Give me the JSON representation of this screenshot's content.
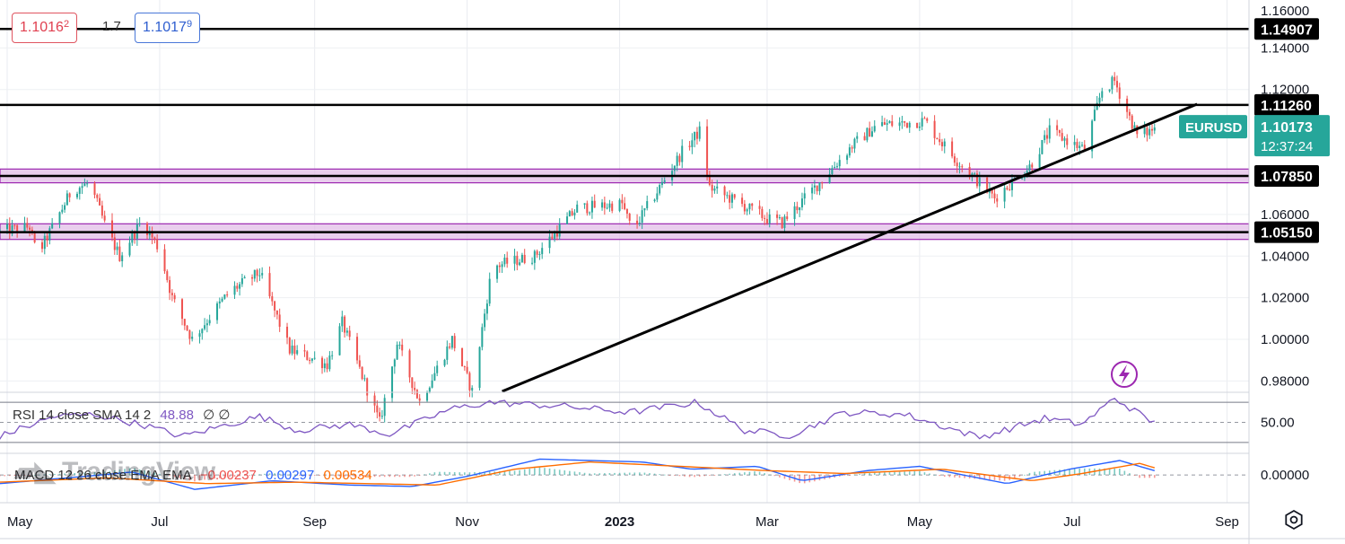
{
  "header": {
    "bid": "1.1016",
    "bid_sup": "2",
    "spread": "1.7",
    "ask": "1.1017",
    "ask_sup": "9"
  },
  "colors": {
    "up": "#26a69a",
    "down": "#ef5350",
    "zone": "#e1bee7",
    "zone_border": "#9c27b0",
    "rsi": "#7e57c2",
    "macd": "#2962ff",
    "signal": "#ff6d00",
    "tag_eur": "#26a69a"
  },
  "chart_data": [
    {
      "type": "candlestick",
      "symbol": "EURUSD",
      "x_labels": [
        "May",
        "Jul",
        "Sep",
        "Nov",
        "2023",
        "Mar",
        "May",
        "Jul",
        "Sep"
      ],
      "x_label_dates": [
        "2022-05",
        "2022-07",
        "2022-09",
        "2022-11",
        "2023-01",
        "2023-03",
        "2023-05",
        "2023-07",
        "2023-09"
      ],
      "y_ticks": [
        "1.14000",
        "1.12000",
        "1.06000",
        "1.04000",
        "1.02000",
        "1.00000",
        "0.98000"
      ],
      "ylim": [
        0.975,
        1.163
      ],
      "close_path": [
        [
          "2022-04-28",
          1.052
        ],
        [
          "2022-05-10",
          1.054
        ],
        [
          "2022-05-13",
          1.04
        ],
        [
          "2022-05-27",
          1.072
        ],
        [
          "2022-06-03",
          1.075
        ],
        [
          "2022-06-10",
          1.052
        ],
        [
          "2022-06-15",
          1.04
        ],
        [
          "2022-06-24",
          1.057
        ],
        [
          "2022-07-01",
          1.043
        ],
        [
          "2022-07-06",
          1.02
        ],
        [
          "2022-07-14",
          1.0
        ],
        [
          "2022-07-29",
          1.023
        ],
        [
          "2022-08-10",
          1.032
        ],
        [
          "2022-08-22",
          0.995
        ],
        [
          "2022-09-06",
          0.988
        ],
        [
          "2022-09-12",
          1.008
        ],
        [
          "2022-09-27",
          0.96
        ],
        [
          "2022-10-04",
          0.998
        ],
        [
          "2022-10-13",
          0.97
        ],
        [
          "2022-10-26",
          1.0
        ],
        [
          "2022-11-03",
          0.975
        ],
        [
          "2022-11-11",
          1.035
        ],
        [
          "2022-11-28",
          1.04
        ],
        [
          "2022-12-15",
          1.063
        ],
        [
          "2023-01-02",
          1.065
        ],
        [
          "2023-01-06",
          1.052
        ],
        [
          "2023-01-26",
          1.09
        ],
        [
          "2023-02-02",
          1.1
        ],
        [
          "2023-02-06",
          1.073
        ],
        [
          "2023-02-23",
          1.062
        ],
        [
          "2023-03-01",
          1.058
        ],
        [
          "2023-03-07",
          1.056
        ],
        [
          "2023-03-24",
          1.078
        ],
        [
          "2023-04-04",
          1.093
        ],
        [
          "2023-04-14",
          1.103
        ],
        [
          "2023-04-26",
          1.104
        ],
        [
          "2023-05-03",
          1.105
        ],
        [
          "2023-05-15",
          1.087
        ],
        [
          "2023-05-31",
          1.068
        ],
        [
          "2023-06-14",
          1.083
        ],
        [
          "2023-06-22",
          1.1
        ],
        [
          "2023-07-06",
          1.091
        ],
        [
          "2023-07-13",
          1.12
        ],
        [
          "2023-07-18",
          1.124
        ],
        [
          "2023-07-27",
          1.098
        ],
        [
          "2023-08-01",
          1.1
        ],
        [
          "2023-08-03",
          1.1017
        ]
      ],
      "horizontal_levels": [
        {
          "label": "1.14907",
          "value": 1.14907
        },
        {
          "label": "1.11260",
          "value": 1.1126
        },
        {
          "label": "1.07850",
          "value": 1.0785,
          "zone": [
            1.0752,
            1.0818
          ]
        },
        {
          "label": "1.05150",
          "value": 1.0515,
          "zone": [
            1.048,
            1.0555
          ]
        }
      ],
      "trendline": [
        [
          "2022-11-15",
          0.975
        ],
        [
          "2023-08-20",
          1.113
        ]
      ],
      "last_price_tag": {
        "symbol": "EURUSD",
        "price": "1.10173",
        "countdown": "12:37:24",
        "value": 1.10173
      },
      "top_partial_tick": "1.16000"
    },
    {
      "type": "line",
      "name": "RSI",
      "label": "RSI 14 close SMA 14 2",
      "value": "48.88",
      "extra": "∅ ∅",
      "y_ticks": [
        "50.00"
      ],
      "bands": [
        70,
        30
      ],
      "ylim": [
        20,
        80
      ],
      "path": [
        [
          "2022-04-28",
          36
        ],
        [
          "2022-05-20",
          56
        ],
        [
          "2022-06-05",
          58
        ],
        [
          "2022-06-25",
          47
        ],
        [
          "2022-07-10",
          36
        ],
        [
          "2022-08-10",
          56
        ],
        [
          "2022-08-25",
          42
        ],
        [
          "2022-09-15",
          48
        ],
        [
          "2022-10-01",
          38
        ],
        [
          "2022-10-25",
          63
        ],
        [
          "2022-11-10",
          70
        ],
        [
          "2022-12-10",
          66
        ],
        [
          "2023-01-05",
          60
        ],
        [
          "2023-02-01",
          70
        ],
        [
          "2023-02-20",
          42
        ],
        [
          "2023-03-10",
          37
        ],
        [
          "2023-04-01",
          60
        ],
        [
          "2023-04-25",
          58
        ],
        [
          "2023-05-25",
          35
        ],
        [
          "2023-06-20",
          54
        ],
        [
          "2023-07-05",
          48
        ],
        [
          "2023-07-18",
          74
        ],
        [
          "2023-08-03",
          49
        ]
      ]
    },
    {
      "type": "line",
      "name": "MACD",
      "label": "MACD 12 26 close EMA EMA",
      "values": [
        "−0.00237",
        "0.00297",
        "0.00534"
      ],
      "y_ticks": [
        "0.00000"
      ],
      "ylim": [
        -0.018,
        0.015
      ],
      "macd_path": [
        [
          "2022-04-28",
          -0.006
        ],
        [
          "2022-06-01",
          -0.001
        ],
        [
          "2022-06-20",
          0.002
        ],
        [
          "2022-07-15",
          -0.01
        ],
        [
          "2022-08-15",
          -0.004
        ],
        [
          "2022-09-15",
          -0.007
        ],
        [
          "2022-10-10",
          -0.008
        ],
        [
          "2022-11-01",
          -0.001
        ],
        [
          "2022-11-30",
          0.011
        ],
        [
          "2023-01-10",
          0.009
        ],
        [
          "2023-01-30",
          0.004
        ],
        [
          "2023-02-25",
          0.006
        ],
        [
          "2023-03-15",
          -0.004
        ],
        [
          "2023-04-10",
          0.003
        ],
        [
          "2023-05-01",
          0.006
        ],
        [
          "2023-06-05",
          -0.006
        ],
        [
          "2023-06-30",
          0.004
        ],
        [
          "2023-07-20",
          0.01
        ],
        [
          "2023-08-03",
          0.003
        ]
      ],
      "signal_path": [
        [
          "2022-04-28",
          -0.005
        ],
        [
          "2022-06-10",
          -0.002
        ],
        [
          "2022-07-20",
          -0.006
        ],
        [
          "2022-08-25",
          -0.005
        ],
        [
          "2022-10-20",
          -0.007
        ],
        [
          "2022-11-20",
          0.004
        ],
        [
          "2022-12-20",
          0.009
        ],
        [
          "2023-01-25",
          0.006
        ],
        [
          "2023-03-01",
          0.003
        ],
        [
          "2023-04-01",
          0.001
        ],
        [
          "2023-05-10",
          0.004
        ],
        [
          "2023-06-15",
          -0.004
        ],
        [
          "2023-07-05",
          0.001
        ],
        [
          "2023-07-28",
          0.008
        ],
        [
          "2023-08-03",
          0.005
        ]
      ]
    }
  ],
  "watermark": "TradingView"
}
